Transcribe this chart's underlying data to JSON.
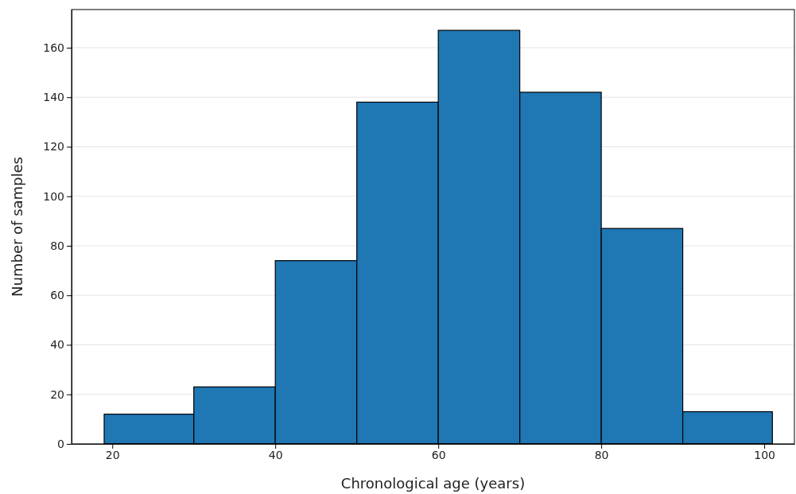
{
  "chart_data": {
    "type": "histogram",
    "xlabel": "Chronological age (years)",
    "ylabel": "Number of samples",
    "bins": [
      19,
      30,
      40,
      50,
      60,
      70,
      80,
      90,
      101
    ],
    "values": [
      12,
      23,
      74,
      138,
      167,
      142,
      87,
      13
    ],
    "color": "#1f77b4",
    "xlim": [
      15,
      103.7
    ],
    "xticks": [
      20,
      40,
      60,
      80,
      100
    ],
    "ylim": [
      0,
      175.4
    ],
    "yticks": [
      0,
      20,
      40,
      60,
      80,
      100,
      120,
      140,
      160
    ],
    "grid": "y"
  }
}
